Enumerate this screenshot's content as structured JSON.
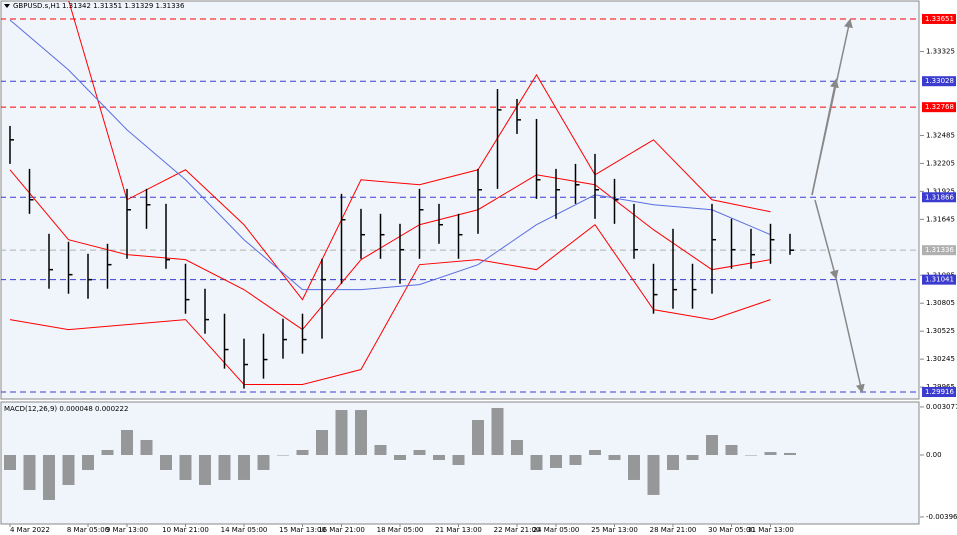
{
  "chart_data": [
    {
      "type": "ohlc",
      "title": "GBPUSD.s,H1",
      "quote": "1.31342 1.31351 1.31329 1.31336",
      "categories": [
        "4 Mar 2022",
        null,
        null,
        null,
        "8 Mar 05:00",
        null,
        "9 Mar 13:00",
        null,
        null,
        "10 Mar 21:00",
        null,
        null,
        "14 Mar 05:00",
        null,
        null,
        "15 Mar 13:00",
        null,
        "16 Mar 21:00",
        null,
        null,
        "18 Mar 05:00",
        null,
        null,
        "21 Mar 13:00",
        null,
        null,
        "22 Mar 21:00",
        null,
        "24 Mar 05:00",
        null,
        null,
        "25 Mar 13:00",
        null,
        null,
        "28 Mar 21:00",
        null,
        null,
        "30 Mar 05:00",
        null,
        "31 Mar 13:00",
        null
      ],
      "high": [
        1.3258,
        1.3215,
        1.315,
        1.3142,
        1.313,
        1.314,
        1.3195,
        1.3195,
        1.318,
        1.312,
        1.3095,
        1.307,
        1.3045,
        1.305,
        1.3065,
        1.307,
        1.3125,
        1.319,
        1.3175,
        1.317,
        1.316,
        1.3195,
        1.318,
        1.317,
        1.3215,
        1.3295,
        1.3285,
        1.3265,
        1.3215,
        1.322,
        1.323,
        1.3205,
        1.318,
        1.312,
        1.3155,
        1.312,
        1.318,
        1.3165,
        1.3155,
        1.316,
        1.315
      ],
      "low": [
        1.322,
        1.317,
        1.3095,
        1.309,
        1.3085,
        1.3095,
        1.3125,
        1.3155,
        1.3115,
        1.307,
        1.305,
        1.3015,
        1.2995,
        1.3005,
        1.3025,
        1.303,
        1.3045,
        1.31,
        1.3125,
        1.3125,
        1.31,
        1.3125,
        1.314,
        1.3125,
        1.315,
        1.3195,
        1.325,
        1.3185,
        1.3165,
        1.318,
        1.3165,
        1.316,
        1.3125,
        1.307,
        1.3075,
        1.3075,
        1.309,
        1.3115,
        1.3115,
        1.312,
        1.3129
      ],
      "close": [
        1.32441,
        1.31841,
        1.31141,
        1.31091,
        1.31041,
        1.31191,
        1.31741,
        1.31791,
        1.31241,
        1.30841,
        1.30641,
        1.30341,
        1.30191,
        1.30241,
        1.30441,
        1.30441,
        1.31041,
        1.31641,
        1.31491,
        1.31491,
        1.31341,
        1.31741,
        1.31591,
        1.31491,
        1.31941,
        1.32741,
        1.32641,
        1.32041,
        1.31941,
        1.31991,
        1.31941,
        1.31841,
        1.31341,
        1.30891,
        1.30941,
        1.30941,
        1.31441,
        1.31341,
        1.31291,
        1.31441,
        1.31336
      ],
      "color": "#000000",
      "overlays": [
        {
          "color": "#ff0000",
          "x": [
            0,
            3,
            6,
            9,
            12,
            15,
            18,
            21,
            24,
            27,
            30,
            33,
            36,
            39
          ],
          "values": [
            1.34641,
            1.33841,
            1.31841,
            1.32141,
            1.31591,
            1.30841,
            1.32041,
            1.31991,
            1.32141,
            1.33091,
            1.32091,
            1.32441,
            1.31841,
            1.31721
          ]
        },
        {
          "color": "#ff0000",
          "x": [
            0,
            3,
            6,
            9,
            12,
            15,
            18,
            21,
            24,
            27,
            30,
            33,
            36,
            39
          ],
          "values": [
            1.32141,
            1.31441,
            1.31291,
            1.31241,
            1.30941,
            1.30541,
            1.31241,
            1.31591,
            1.31741,
            1.32091,
            1.31991,
            1.31541,
            1.31141,
            1.31241
          ]
        },
        {
          "color": "#ff0000",
          "x": [
            0,
            3,
            6,
            9,
            12,
            15,
            18,
            21,
            24,
            27,
            30,
            33,
            36,
            39
          ],
          "values": [
            1.30641,
            1.30541,
            1.30591,
            1.30641,
            1.29991,
            1.29991,
            1.30141,
            1.31191,
            1.31241,
            1.31141,
            1.31591,
            1.30741,
            1.30641,
            1.30841
          ]
        },
        {
          "color": "#5a6ee0",
          "x": [
            0,
            3,
            6,
            9,
            12,
            15,
            18,
            21,
            24,
            27,
            30,
            33,
            36,
            39
          ],
          "values": [
            1.33641,
            1.33141,
            1.32541,
            1.32041,
            1.31441,
            1.30941,
            1.30941,
            1.30991,
            1.31191,
            1.31591,
            1.31891,
            1.31791,
            1.31741,
            1.31491
          ]
        }
      ],
      "levels": [
        {
          "value": 1.33651,
          "color": "#ff0000"
        },
        {
          "value": 1.33028,
          "color": "#3b3bd0"
        },
        {
          "value": 1.32768,
          "color": "#ff0000"
        },
        {
          "value": 1.31866,
          "color": "#3b3bd0"
        },
        {
          "value": 1.31336,
          "color": "#b0b0b0"
        },
        {
          "value": 1.31041,
          "color": "#3b3bd0"
        },
        {
          "value": 1.29916,
          "color": "#3b3bd0"
        }
      ],
      "ylim": [
        1.29836,
        1.33841
      ],
      "yticks": [
        1.33325,
        1.32485,
        1.32205,
        1.31925,
        1.31645,
        1.31085,
        1.30805,
        1.30525,
        1.30245,
        1.29965
      ]
    },
    {
      "type": "histogram",
      "title": "MACD(12,26,9) 0.000048 0.000222",
      "color": "#808080",
      "values": [
        -0.00096,
        -0.00224,
        -0.00288,
        -0.00192,
        -0.00096,
        0.00032,
        0.0016,
        0.00096,
        -0.00096,
        -0.0016,
        -0.00192,
        -0.0016,
        -0.0016,
        -0.00096,
        0,
        0.00032,
        0.0016,
        0.00288,
        0.00288,
        0.00064,
        -0.00032,
        0.00032,
        -0.00032,
        -0.00064,
        0.00224,
        0.00301,
        0.00096,
        -0.00096,
        -0.00083,
        -0.00064,
        0.00032,
        -0.00032,
        -0.0016,
        -0.00256,
        -0.00096,
        -0.00032,
        0.00128,
        0.00064,
        0,
        0.00019,
        0.00013
      ],
      "ylim": [
        -0.004355,
        0.00333
      ],
      "yticks": [
        0.003077,
        {
          "value": 0,
          "label": "0.00"
        },
        -0.003968
      ]
    }
  ]
}
